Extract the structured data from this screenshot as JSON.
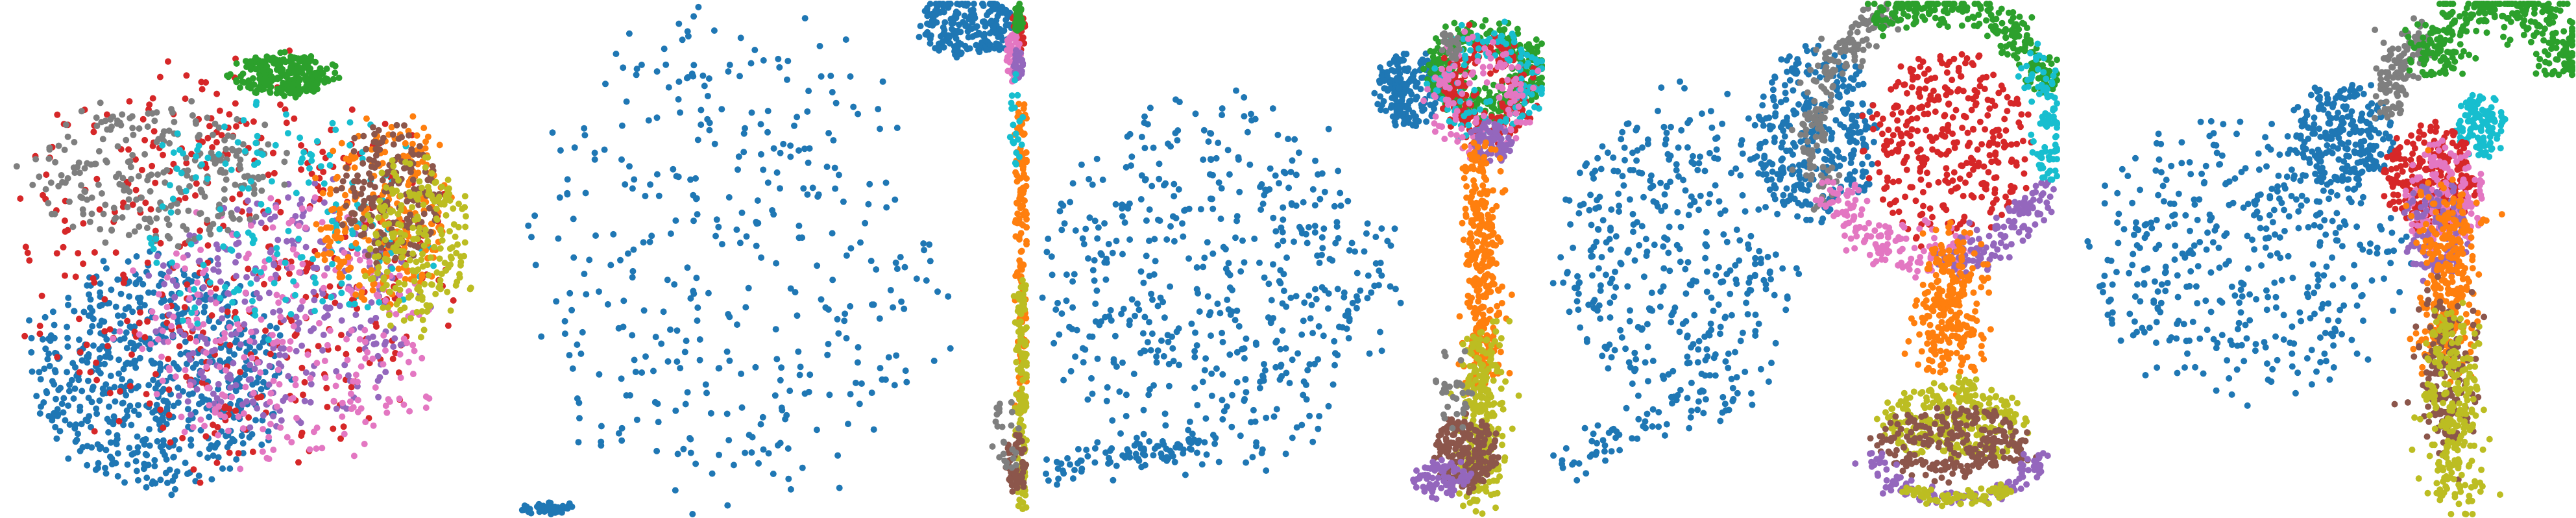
{
  "figure": {
    "background": "#ffffff",
    "axes_visible": false,
    "panel_count": 5
  },
  "palette": {
    "blue": "#1f77b4",
    "orange": "#ff7f0e",
    "green": "#2ca02c",
    "red": "#d62728",
    "purple": "#9467bd",
    "brown": "#8c564b",
    "pink": "#e377c2",
    "gray": "#7f7f7f",
    "olive": "#bcbd22",
    "cyan": "#17becf"
  },
  "chart_data": [
    {
      "type": "scatter",
      "title": "",
      "xlabel": "",
      "ylabel": "",
      "grid": false,
      "legend": "none",
      "xlim": [
        0,
        1
      ],
      "ylim": [
        0,
        1
      ],
      "clusters": [
        {
          "color": "blue",
          "shape": "blob",
          "cx": 0.3,
          "cy": 0.28,
          "rx": 0.24,
          "ry": 0.22,
          "count": 650
        },
        {
          "color": "red",
          "shape": "blob",
          "cx": 0.45,
          "cy": 0.5,
          "rx": 0.4,
          "ry": 0.4,
          "count": 420
        },
        {
          "color": "purple",
          "shape": "blob",
          "cx": 0.55,
          "cy": 0.4,
          "rx": 0.26,
          "ry": 0.24,
          "count": 300
        },
        {
          "color": "pink",
          "shape": "blob",
          "cx": 0.55,
          "cy": 0.35,
          "rx": 0.3,
          "ry": 0.26,
          "count": 260
        },
        {
          "color": "gray",
          "shape": "blob",
          "cx": 0.3,
          "cy": 0.67,
          "rx": 0.24,
          "ry": 0.14,
          "count": 260
        },
        {
          "color": "cyan",
          "shape": "blob",
          "cx": 0.55,
          "cy": 0.58,
          "rx": 0.3,
          "ry": 0.22,
          "count": 180
        },
        {
          "color": "orange",
          "shape": "blob",
          "cx": 0.75,
          "cy": 0.6,
          "rx": 0.14,
          "ry": 0.18,
          "count": 230
        },
        {
          "color": "brown",
          "shape": "blob",
          "cx": 0.76,
          "cy": 0.63,
          "rx": 0.1,
          "ry": 0.13,
          "count": 180
        },
        {
          "color": "olive",
          "shape": "blob",
          "cx": 0.82,
          "cy": 0.53,
          "rx": 0.1,
          "ry": 0.17,
          "count": 220
        },
        {
          "color": "green",
          "shape": "blob",
          "cx": 0.55,
          "cy": 0.86,
          "rx": 0.1,
          "ry": 0.04,
          "count": 260
        }
      ]
    },
    {
      "type": "scatter",
      "title": "",
      "xlabel": "",
      "ylabel": "",
      "grid": false,
      "legend": "none",
      "xlim": [
        0,
        1
      ],
      "ylim": [
        0,
        1
      ],
      "clusters": [
        {
          "color": "blue",
          "shape": "blob",
          "cx": 0.42,
          "cy": 0.5,
          "rx": 0.4,
          "ry": 0.48,
          "count": 380
        },
        {
          "color": "blue",
          "shape": "blob",
          "cx": 0.88,
          "cy": 0.96,
          "rx": 0.1,
          "ry": 0.06,
          "count": 220
        },
        {
          "color": "blue",
          "shape": "segment",
          "x1": 0.01,
          "y1": 0.01,
          "x2": 0.1,
          "y2": 0.01,
          "spread": 0.006,
          "count": 40
        },
        {
          "color": "red",
          "shape": "blob",
          "cx": 0.985,
          "cy": 0.95,
          "rx": 0.012,
          "ry": 0.05,
          "count": 40
        },
        {
          "color": "pink",
          "shape": "blob",
          "cx": 0.975,
          "cy": 0.9,
          "rx": 0.015,
          "ry": 0.05,
          "count": 50
        },
        {
          "color": "green",
          "shape": "blob",
          "cx": 0.985,
          "cy": 0.97,
          "rx": 0.01,
          "ry": 0.03,
          "count": 30
        },
        {
          "color": "purple",
          "shape": "blob",
          "cx": 0.985,
          "cy": 0.88,
          "rx": 0.01,
          "ry": 0.03,
          "count": 30
        },
        {
          "color": "orange",
          "shape": "segment",
          "x1": 0.99,
          "y1": 0.8,
          "x2": 0.99,
          "y2": 0.2,
          "spread": 0.006,
          "count": 140
        },
        {
          "color": "olive",
          "shape": "segment",
          "x1": 0.99,
          "y1": 0.45,
          "x2": 0.99,
          "y2": 0.02,
          "spread": 0.006,
          "count": 140
        },
        {
          "color": "brown",
          "shape": "blob",
          "cx": 0.98,
          "cy": 0.1,
          "rx": 0.02,
          "ry": 0.06,
          "count": 60
        },
        {
          "color": "gray",
          "shape": "blob",
          "cx": 0.96,
          "cy": 0.15,
          "rx": 0.03,
          "ry": 0.08,
          "count": 25
        },
        {
          "color": "cyan",
          "shape": "blob",
          "cx": 0.98,
          "cy": 0.75,
          "rx": 0.015,
          "ry": 0.1,
          "count": 20
        }
      ]
    },
    {
      "type": "scatter",
      "title": "",
      "xlabel": "",
      "ylabel": "",
      "grid": false,
      "legend": "none",
      "xlim": [
        0,
        1
      ],
      "ylim": [
        0,
        1
      ],
      "clusters": [
        {
          "color": "blue",
          "shape": "blob",
          "cx": 0.36,
          "cy": 0.45,
          "rx": 0.33,
          "ry": 0.35,
          "count": 520
        },
        {
          "color": "blue",
          "shape": "blob",
          "cx": 0.74,
          "cy": 0.83,
          "rx": 0.07,
          "ry": 0.07,
          "count": 200
        },
        {
          "color": "blue",
          "shape": "segment",
          "x1": 0.03,
          "y1": 0.09,
          "x2": 0.36,
          "y2": 0.14,
          "spread": 0.015,
          "count": 90
        },
        {
          "color": "green",
          "shape": "ring",
          "cx": 0.89,
          "cy": 0.87,
          "rx": 0.09,
          "ry": 0.07,
          "width": 0.02,
          "count": 330
        },
        {
          "color": "red",
          "shape": "ring",
          "cx": 0.89,
          "cy": 0.84,
          "rx": 0.07,
          "ry": 0.08,
          "width": 0.02,
          "count": 180
        },
        {
          "color": "cyan",
          "shape": "ring",
          "cx": 0.9,
          "cy": 0.85,
          "rx": 0.09,
          "ry": 0.08,
          "width": 0.02,
          "count": 120
        },
        {
          "color": "pink",
          "shape": "ring",
          "cx": 0.88,
          "cy": 0.82,
          "rx": 0.08,
          "ry": 0.08,
          "width": 0.02,
          "count": 120
        },
        {
          "color": "gray",
          "shape": "blob",
          "cx": 0.82,
          "cy": 0.92,
          "rx": 0.02,
          "ry": 0.03,
          "count": 25
        },
        {
          "color": "purple",
          "shape": "blob",
          "cx": 0.9,
          "cy": 0.73,
          "rx": 0.04,
          "ry": 0.04,
          "count": 80
        },
        {
          "color": "orange",
          "shape": "segment",
          "x1": 0.88,
          "y1": 0.72,
          "x2": 0.88,
          "y2": 0.25,
          "spread": 0.018,
          "count": 300
        },
        {
          "color": "olive",
          "shape": "segment",
          "x1": 0.88,
          "y1": 0.36,
          "x2": 0.88,
          "y2": 0.02,
          "spread": 0.022,
          "count": 260
        },
        {
          "color": "brown",
          "shape": "blob",
          "cx": 0.85,
          "cy": 0.12,
          "rx": 0.06,
          "ry": 0.07,
          "count": 200
        },
        {
          "color": "purple",
          "shape": "blob",
          "cx": 0.8,
          "cy": 0.07,
          "rx": 0.06,
          "ry": 0.04,
          "count": 80
        },
        {
          "color": "gray",
          "shape": "blob",
          "cx": 0.83,
          "cy": 0.25,
          "rx": 0.04,
          "ry": 0.08,
          "count": 30
        }
      ]
    },
    {
      "type": "scatter",
      "title": "",
      "xlabel": "",
      "ylabel": "",
      "grid": false,
      "legend": "none",
      "xlim": [
        0,
        1
      ],
      "ylim": [
        0,
        1
      ],
      "clusters": [
        {
          "color": "blue",
          "shape": "blob",
          "cx": 0.25,
          "cy": 0.52,
          "rx": 0.22,
          "ry": 0.3,
          "count": 380
        },
        {
          "color": "blue",
          "shape": "blob",
          "cx": 0.52,
          "cy": 0.74,
          "rx": 0.12,
          "ry": 0.16,
          "count": 330
        },
        {
          "color": "blue",
          "shape": "segment",
          "x1": 0.02,
          "y1": 0.1,
          "x2": 0.4,
          "y2": 0.25,
          "spread": 0.02,
          "count": 70
        },
        {
          "color": "gray",
          "shape": "arc",
          "cx": 0.76,
          "cy": 0.74,
          "rx": 0.24,
          "ry": 0.26,
          "a1": 110,
          "a2": 210,
          "width": 0.02,
          "count": 180
        },
        {
          "color": "green",
          "shape": "arc",
          "cx": 0.76,
          "cy": 0.74,
          "rx": 0.24,
          "ry": 0.26,
          "a1": 20,
          "a2": 120,
          "width": 0.02,
          "count": 250
        },
        {
          "color": "red",
          "shape": "blob",
          "cx": 0.78,
          "cy": 0.72,
          "rx": 0.16,
          "ry": 0.18,
          "count": 330
        },
        {
          "color": "pink",
          "shape": "arc",
          "cx": 0.76,
          "cy": 0.74,
          "rx": 0.22,
          "ry": 0.24,
          "a1": 200,
          "a2": 290,
          "width": 0.025,
          "count": 150
        },
        {
          "color": "purple",
          "shape": "arc",
          "cx": 0.76,
          "cy": 0.74,
          "rx": 0.23,
          "ry": 0.25,
          "a1": 270,
          "a2": 340,
          "width": 0.02,
          "count": 130
        },
        {
          "color": "cyan",
          "shape": "arc",
          "cx": 0.76,
          "cy": 0.74,
          "rx": 0.23,
          "ry": 0.25,
          "a1": -20,
          "a2": 40,
          "width": 0.02,
          "count": 90
        },
        {
          "color": "orange",
          "shape": "segment",
          "x1": 0.8,
          "y1": 0.52,
          "x2": 0.78,
          "y2": 0.3,
          "spread": 0.035,
          "count": 260
        },
        {
          "color": "olive",
          "shape": "blob",
          "cx": 0.8,
          "cy": 0.18,
          "rx": 0.14,
          "ry": 0.08,
          "count": 280
        },
        {
          "color": "brown",
          "shape": "blob",
          "cx": 0.8,
          "cy": 0.14,
          "rx": 0.15,
          "ry": 0.07,
          "count": 250
        },
        {
          "color": "purple",
          "shape": "arc",
          "cx": 0.8,
          "cy": 0.12,
          "rx": 0.16,
          "ry": 0.09,
          "a1": 180,
          "a2": 360,
          "width": 0.015,
          "count": 120
        },
        {
          "color": "olive",
          "shape": "arc",
          "cx": 0.8,
          "cy": 0.12,
          "rx": 0.16,
          "ry": 0.09,
          "a1": 230,
          "a2": 310,
          "width": 0.012,
          "count": 80
        }
      ]
    },
    {
      "type": "scatter",
      "title": "",
      "xlabel": "",
      "ylabel": "",
      "grid": false,
      "legend": "none",
      "xlim": [
        0,
        1
      ],
      "ylim": [
        0,
        1
      ],
      "clusters": [
        {
          "color": "blue",
          "shape": "blob",
          "cx": 0.35,
          "cy": 0.5,
          "rx": 0.3,
          "ry": 0.26,
          "count": 430
        },
        {
          "color": "blue",
          "shape": "blob",
          "cx": 0.55,
          "cy": 0.74,
          "rx": 0.1,
          "ry": 0.1,
          "count": 230
        },
        {
          "color": "gray",
          "shape": "arc",
          "cx": 0.74,
          "cy": 0.82,
          "rx": 0.1,
          "ry": 0.12,
          "a1": 100,
          "a2": 200,
          "width": 0.02,
          "count": 130
        },
        {
          "color": "green",
          "shape": "arc",
          "cx": 0.86,
          "cy": 0.86,
          "rx": 0.14,
          "ry": 0.14,
          "a1": 0,
          "a2": 180,
          "width": 0.03,
          "count": 320
        },
        {
          "color": "cyan",
          "shape": "blob",
          "cx": 0.82,
          "cy": 0.76,
          "rx": 0.05,
          "ry": 0.06,
          "count": 110
        },
        {
          "color": "red",
          "shape": "blob",
          "cx": 0.72,
          "cy": 0.66,
          "rx": 0.09,
          "ry": 0.1,
          "count": 250
        },
        {
          "color": "pink",
          "shape": "blob",
          "cx": 0.75,
          "cy": 0.62,
          "rx": 0.08,
          "ry": 0.1,
          "count": 180
        },
        {
          "color": "purple",
          "shape": "blob",
          "cx": 0.73,
          "cy": 0.56,
          "rx": 0.06,
          "ry": 0.1,
          "count": 120
        },
        {
          "color": "orange",
          "shape": "segment",
          "x1": 0.76,
          "y1": 0.62,
          "x2": 0.75,
          "y2": 0.3,
          "spread": 0.03,
          "count": 280
        },
        {
          "color": "brown",
          "shape": "segment",
          "x1": 0.75,
          "y1": 0.4,
          "x2": 0.76,
          "y2": 0.15,
          "spread": 0.03,
          "count": 160
        },
        {
          "color": "olive",
          "shape": "segment",
          "x1": 0.76,
          "y1": 0.38,
          "x2": 0.77,
          "y2": 0.02,
          "spread": 0.028,
          "count": 260
        }
      ]
    }
  ]
}
